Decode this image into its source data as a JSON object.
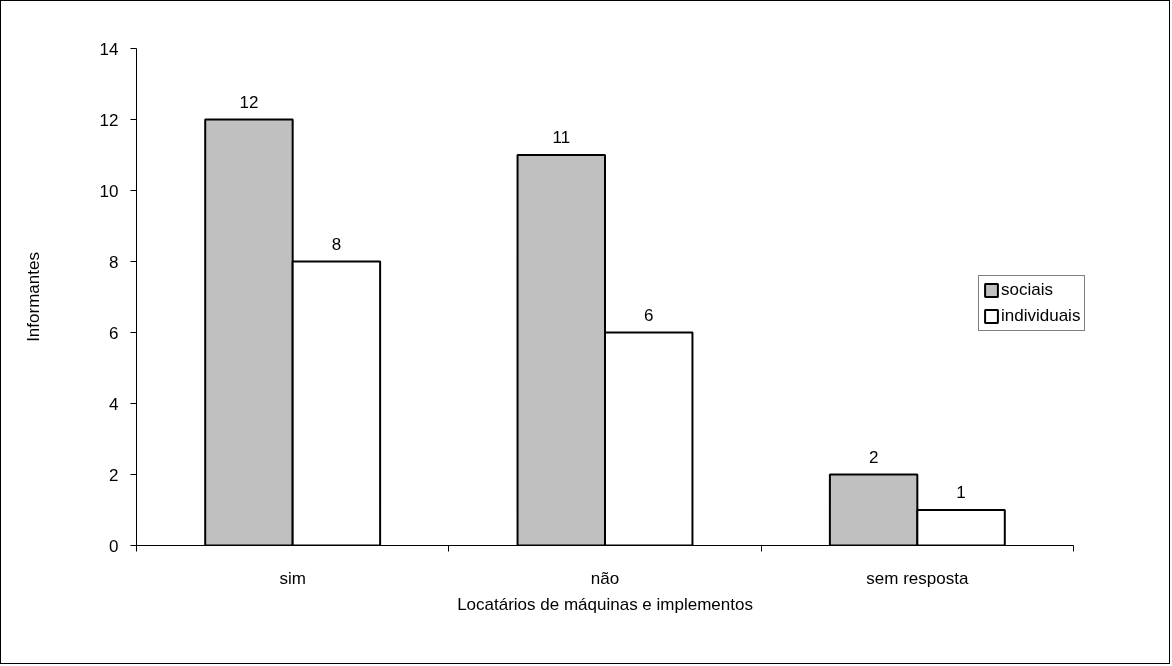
{
  "chart_data": {
    "type": "bar",
    "categories": [
      "sim",
      "não",
      "sem resposta"
    ],
    "series": [
      {
        "name": "sociais",
        "color": "#c0c0c0",
        "values": [
          12,
          11,
          2
        ]
      },
      {
        "name": "individuais",
        "color": "#ffffff",
        "values": [
          8,
          6,
          1
        ]
      }
    ],
    "xlabel": "Locatários de máquinas e implementos",
    "ylabel": "Informantes",
    "ylim": [
      0,
      14
    ],
    "yticks": [
      0,
      2,
      4,
      6,
      8,
      10,
      12,
      14
    ],
    "data_labels": true,
    "legend": "right",
    "grid": false
  }
}
